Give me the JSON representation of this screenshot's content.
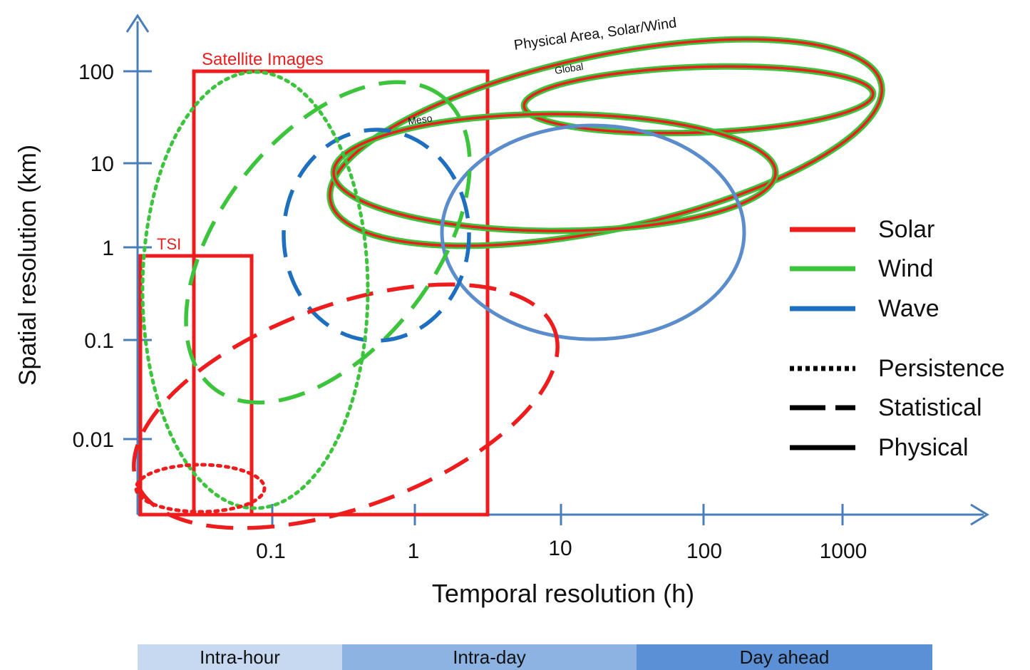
{
  "axes": {
    "xlabel": "Temporal resolution (h)",
    "ylabel": "Spatial resolution (km)",
    "x_ticks": [
      "0.1",
      "1",
      "10",
      "100",
      "1000"
    ],
    "y_ticks": [
      "100",
      "10",
      "1",
      "0.1",
      "0.01"
    ],
    "x_scale": "log",
    "y_scale": "log"
  },
  "annotations": {
    "satellite": "Satellite Images",
    "tsi": "TSI",
    "physical_area": "Physical Area, Solar/Wind",
    "global": "Global",
    "meso": "Meso"
  },
  "legend": {
    "placement": "right",
    "colors": [
      {
        "label": "Solar",
        "color": "#ee1c1c"
      },
      {
        "label": "Wind",
        "color": "#3cc43c"
      },
      {
        "label": "Wave",
        "color": "#1f6fc0"
      }
    ],
    "styles": [
      {
        "label": "Persistence",
        "style": "dotted"
      },
      {
        "label": "Statistical",
        "style": "dashed"
      },
      {
        "label": "Physical",
        "style": "solid"
      }
    ]
  },
  "horizon_bands": [
    {
      "label": "Intra-hour",
      "color": "#c6d9f0"
    },
    {
      "label": "Intra-day",
      "color": "#8db3e2"
    },
    {
      "label": "Day ahead",
      "color": "#5b8fd6"
    }
  ],
  "colors": {
    "axis": "#4a7ebb",
    "solar": "#ee1c1c",
    "wind": "#3cc43c",
    "wave_dashed": "#1f6fc0",
    "wave_solid": "#5b8ccc"
  }
}
